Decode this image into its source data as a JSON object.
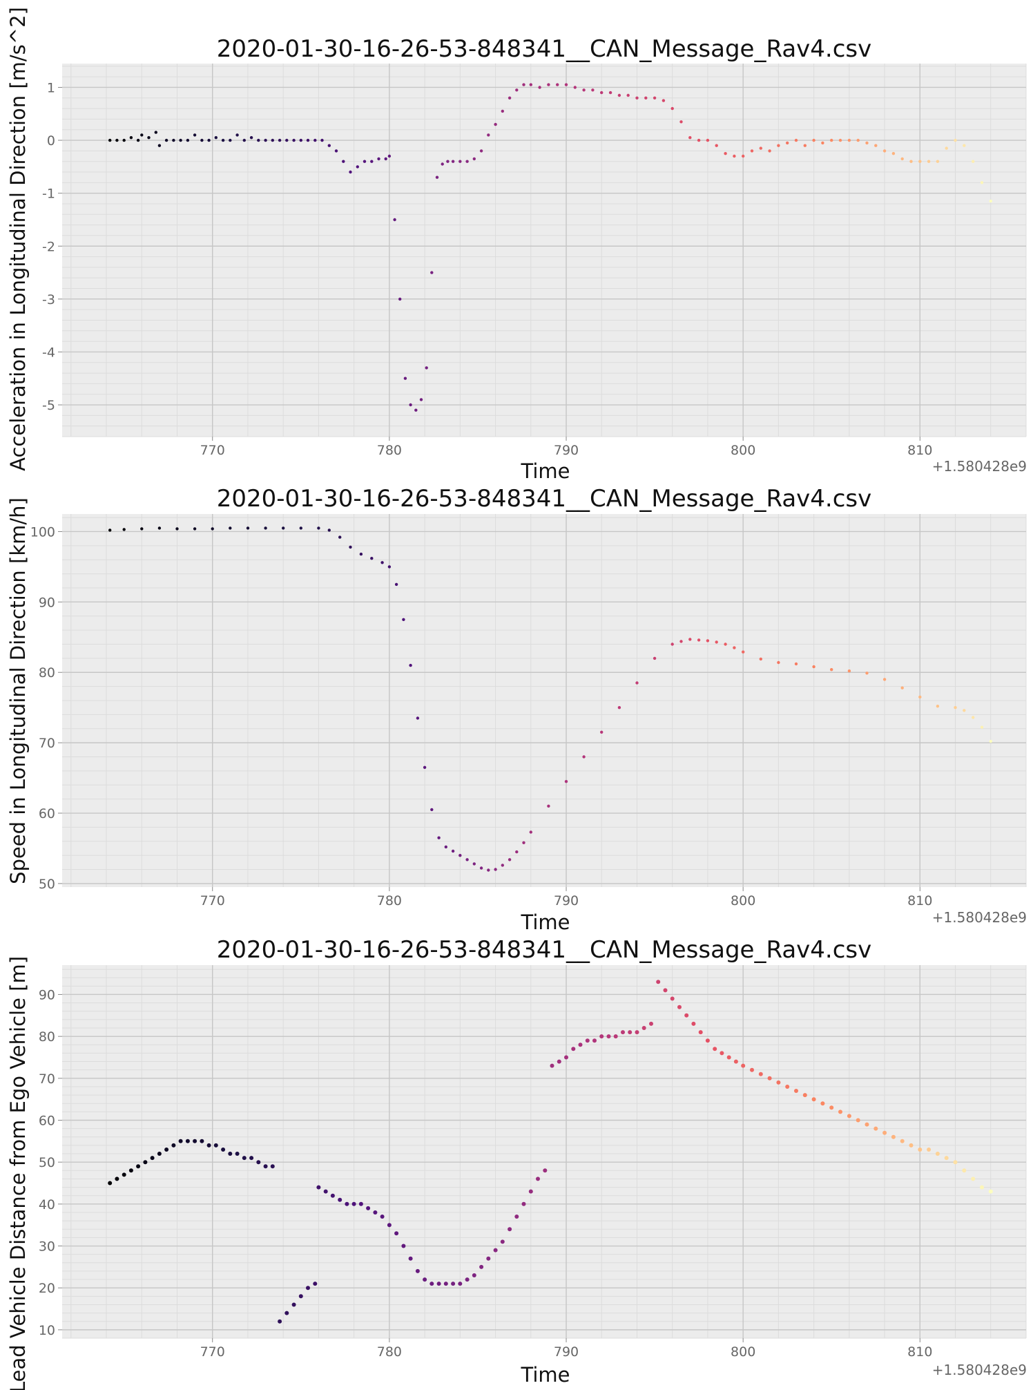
{
  "chart_data": [
    {
      "type": "scatter",
      "title": "2020-01-30-16-26-53-848341__CAN_Message_Rav4.csv",
      "xlabel": "Time",
      "ylabel": "Acceleration in Longitudinal Direction [m/s^2]",
      "offset_label": "+1.580428e9",
      "xlim": [
        761.5,
        816
      ],
      "ylim": [
        -5.6,
        1.45
      ],
      "xticks": [
        770,
        780,
        790,
        800,
        810
      ],
      "yticks": [
        -5,
        -4,
        -3,
        -2,
        -1,
        0,
        1
      ],
      "grid": true,
      "colormap": "magma-like",
      "series": [
        {
          "x": [
            764.2,
            764.6,
            765.0,
            765.4,
            765.8,
            766.0,
            766.4,
            766.8,
            767.0,
            767.4,
            767.8,
            768.2,
            768.6,
            769.0,
            769.4,
            769.8,
            770.2,
            770.6,
            771.0,
            771.4,
            771.8,
            772.2,
            772.6,
            773.0,
            773.4,
            773.8,
            774.2,
            774.6,
            775.0,
            775.4,
            775.8,
            776.2,
            776.6,
            777.0,
            777.4,
            777.8,
            778.2,
            778.6,
            779.0,
            779.4,
            779.8,
            780.0,
            780.3,
            780.6,
            780.9,
            781.2,
            781.5,
            781.8,
            782.1,
            782.4,
            782.7,
            783.0,
            783.3,
            783.6,
            784.0,
            784.4,
            784.8,
            785.2,
            785.6,
            786.0,
            786.4,
            786.8,
            787.2,
            787.6,
            788.0,
            788.5,
            789.0,
            789.5,
            790.0,
            790.5,
            791.0,
            791.5,
            792.0,
            792.5,
            793.0,
            793.5,
            794.0,
            794.5,
            795.0,
            795.5,
            796.0,
            796.5,
            797.0,
            797.5,
            798.0,
            798.5,
            799.0,
            799.5,
            800.0,
            800.5,
            801.0,
            801.5,
            802.0,
            802.5,
            803.0,
            803.5,
            804.0,
            804.5,
            805.0,
            805.5,
            806.0,
            806.5,
            807.0,
            807.5,
            808.0,
            808.5,
            809.0,
            809.5,
            810.0,
            810.5,
            811.0,
            811.5,
            812.0,
            812.5,
            813.0,
            813.5,
            814.0
          ],
          "y": [
            0,
            0,
            0,
            0.05,
            0,
            0.1,
            0.05,
            0.15,
            -0.1,
            0,
            0,
            0,
            0,
            0.1,
            0,
            0,
            0.05,
            0,
            0,
            0.1,
            0,
            0.05,
            0,
            0,
            0,
            0,
            0,
            0,
            0,
            0,
            0,
            0,
            -0.1,
            -0.2,
            -0.4,
            -0.6,
            -0.5,
            -0.4,
            -0.4,
            -0.35,
            -0.35,
            -0.3,
            -1.5,
            -3.0,
            -4.5,
            -5.0,
            -5.1,
            -4.9,
            -4.3,
            -2.5,
            -0.7,
            -0.45,
            -0.4,
            -0.4,
            -0.4,
            -0.4,
            -0.35,
            -0.2,
            0.1,
            0.3,
            0.55,
            0.8,
            0.95,
            1.05,
            1.05,
            1.0,
            1.05,
            1.05,
            1.05,
            1.0,
            0.95,
            0.95,
            0.9,
            0.9,
            0.85,
            0.85,
            0.8,
            0.8,
            0.8,
            0.75,
            0.6,
            0.35,
            0.05,
            0,
            0,
            -0.1,
            -0.25,
            -0.3,
            -0.3,
            -0.2,
            -0.15,
            -0.2,
            -0.1,
            -0.05,
            0,
            -0.1,
            0,
            -0.05,
            0,
            0,
            0,
            0,
            -0.05,
            -0.1,
            -0.2,
            -0.25,
            -0.35,
            -0.4,
            -0.4,
            -0.4,
            -0.4,
            -0.15,
            0,
            -0.1,
            -0.4,
            -0.8,
            -1.15
          ]
        }
      ]
    },
    {
      "type": "scatter",
      "title": "2020-01-30-16-26-53-848341__CAN_Message_Rav4.csv",
      "xlabel": "Time",
      "ylabel": "Speed in Longitudinal Direction [km/h]",
      "offset_label": "+1.580428e9",
      "xlim": [
        761.5,
        816
      ],
      "ylim": [
        49.5,
        102.5
      ],
      "xticks": [
        770,
        780,
        790,
        800,
        810
      ],
      "yticks": [
        50,
        60,
        70,
        80,
        90,
        100
      ],
      "grid": true,
      "colormap": "magma-like",
      "series": [
        {
          "x": [
            764.2,
            765.0,
            766.0,
            767.0,
            768.0,
            769.0,
            770.0,
            771.0,
            772.0,
            773.0,
            774.0,
            775.0,
            776.0,
            776.6,
            777.2,
            777.8,
            778.4,
            779.0,
            779.6,
            780.0,
            780.4,
            780.8,
            781.2,
            781.6,
            782.0,
            782.4,
            782.8,
            783.2,
            783.6,
            784.0,
            784.4,
            784.8,
            785.2,
            785.6,
            786.0,
            786.4,
            786.8,
            787.2,
            787.6,
            788.0,
            789.0,
            790.0,
            791.0,
            792.0,
            793.0,
            794.0,
            795.0,
            796.0,
            796.5,
            797.0,
            797.5,
            798.0,
            798.5,
            799.0,
            799.5,
            800.0,
            801.0,
            802.0,
            803.0,
            804.0,
            805.0,
            806.0,
            807.0,
            808.0,
            809.0,
            810.0,
            811.0,
            812.0,
            812.5,
            813.0,
            813.5,
            814.0
          ],
          "y": [
            100.2,
            100.3,
            100.4,
            100.5,
            100.4,
            100.4,
            100.4,
            100.5,
            100.5,
            100.5,
            100.5,
            100.5,
            100.5,
            100.2,
            99.2,
            97.8,
            96.8,
            96.2,
            95.6,
            95.0,
            92.5,
            87.5,
            81.0,
            73.5,
            66.5,
            60.5,
            56.5,
            55.2,
            54.6,
            54.0,
            53.4,
            52.8,
            52.2,
            51.9,
            52.0,
            52.6,
            53.4,
            54.5,
            55.8,
            57.3,
            61.0,
            64.5,
            68.0,
            71.5,
            75.0,
            78.5,
            82.0,
            84.0,
            84.4,
            84.7,
            84.6,
            84.5,
            84.3,
            84.0,
            83.5,
            82.9,
            81.9,
            81.4,
            81.2,
            80.8,
            80.4,
            80.2,
            79.9,
            79.0,
            77.8,
            76.5,
            75.2,
            75.0,
            74.6,
            73.6,
            72.2,
            70.2
          ]
        }
      ]
    },
    {
      "type": "scatter",
      "title": "2020-01-30-16-26-53-848341__CAN_Message_Rav4.csv",
      "xlabel": "Time",
      "ylabel": "Lead Vehicle Distance from Ego Vehicle [m]",
      "offset_label": "+1.580428e9",
      "xlim": [
        761.5,
        816
      ],
      "ylim": [
        8,
        97
      ],
      "xticks": [
        770,
        780,
        790,
        800,
        810
      ],
      "yticks": [
        10,
        20,
        30,
        40,
        50,
        60,
        70,
        80,
        90
      ],
      "grid": true,
      "colormap": "magma-like",
      "series": [
        {
          "x": [
            764.2,
            764.6,
            765.0,
            765.4,
            765.8,
            766.2,
            766.6,
            767.0,
            767.4,
            767.8,
            768.2,
            768.6,
            769.0,
            769.4,
            769.8,
            770.2,
            770.6,
            771.0,
            771.4,
            771.8,
            772.2,
            772.6,
            773.0,
            773.4,
            773.8,
            774.2,
            774.6,
            775.0,
            775.4,
            775.8,
            776.0,
            776.4,
            776.8,
            777.2,
            777.6,
            778.0,
            778.4,
            778.8,
            779.2,
            779.6,
            780.0,
            780.4,
            780.8,
            781.2,
            781.6,
            782.0,
            782.4,
            782.8,
            783.2,
            783.6,
            784.0,
            784.4,
            784.8,
            785.2,
            785.6,
            786.0,
            786.4,
            786.8,
            787.2,
            787.6,
            788.0,
            788.4,
            788.8,
            789.2,
            789.6,
            790.0,
            790.4,
            790.8,
            791.2,
            791.6,
            792.0,
            792.4,
            792.8,
            793.2,
            793.6,
            794.0,
            794.4,
            794.8,
            795.2,
            795.6,
            796.0,
            796.4,
            796.8,
            797.2,
            797.6,
            798.0,
            798.4,
            798.8,
            799.2,
            799.6,
            800.0,
            800.5,
            801.0,
            801.5,
            802.0,
            802.5,
            803.0,
            803.5,
            804.0,
            804.5,
            805.0,
            805.5,
            806.0,
            806.5,
            807.0,
            807.5,
            808.0,
            808.5,
            809.0,
            809.5,
            810.0,
            810.5,
            811.0,
            811.5,
            812.0,
            812.5,
            813.0,
            813.5,
            814.0
          ],
          "y": [
            45,
            46,
            47,
            48,
            49,
            50,
            51,
            52,
            53,
            54,
            55,
            55,
            55,
            55,
            54,
            54,
            53,
            52,
            52,
            51,
            51,
            50,
            49,
            49,
            12,
            14,
            16,
            18,
            20,
            21,
            44,
            43,
            42,
            41,
            40,
            40,
            40,
            39,
            38,
            37,
            35,
            33,
            30,
            27,
            24,
            22,
            21,
            21,
            21,
            21,
            21,
            22,
            23,
            25,
            27,
            29,
            31,
            34,
            37,
            40,
            43,
            46,
            48,
            73,
            74,
            75,
            77,
            78,
            79,
            79,
            80,
            80,
            80,
            81,
            81,
            81,
            82,
            83,
            93,
            91,
            89,
            87,
            85,
            83,
            81,
            79,
            77,
            76,
            75,
            74,
            73,
            72,
            71,
            70,
            69,
            68,
            67,
            66,
            65,
            64,
            63,
            62,
            61,
            60,
            59,
            58,
            57,
            56,
            55,
            54,
            53,
            53,
            52,
            51,
            50,
            48,
            46,
            44,
            43
          ]
        }
      ]
    }
  ]
}
